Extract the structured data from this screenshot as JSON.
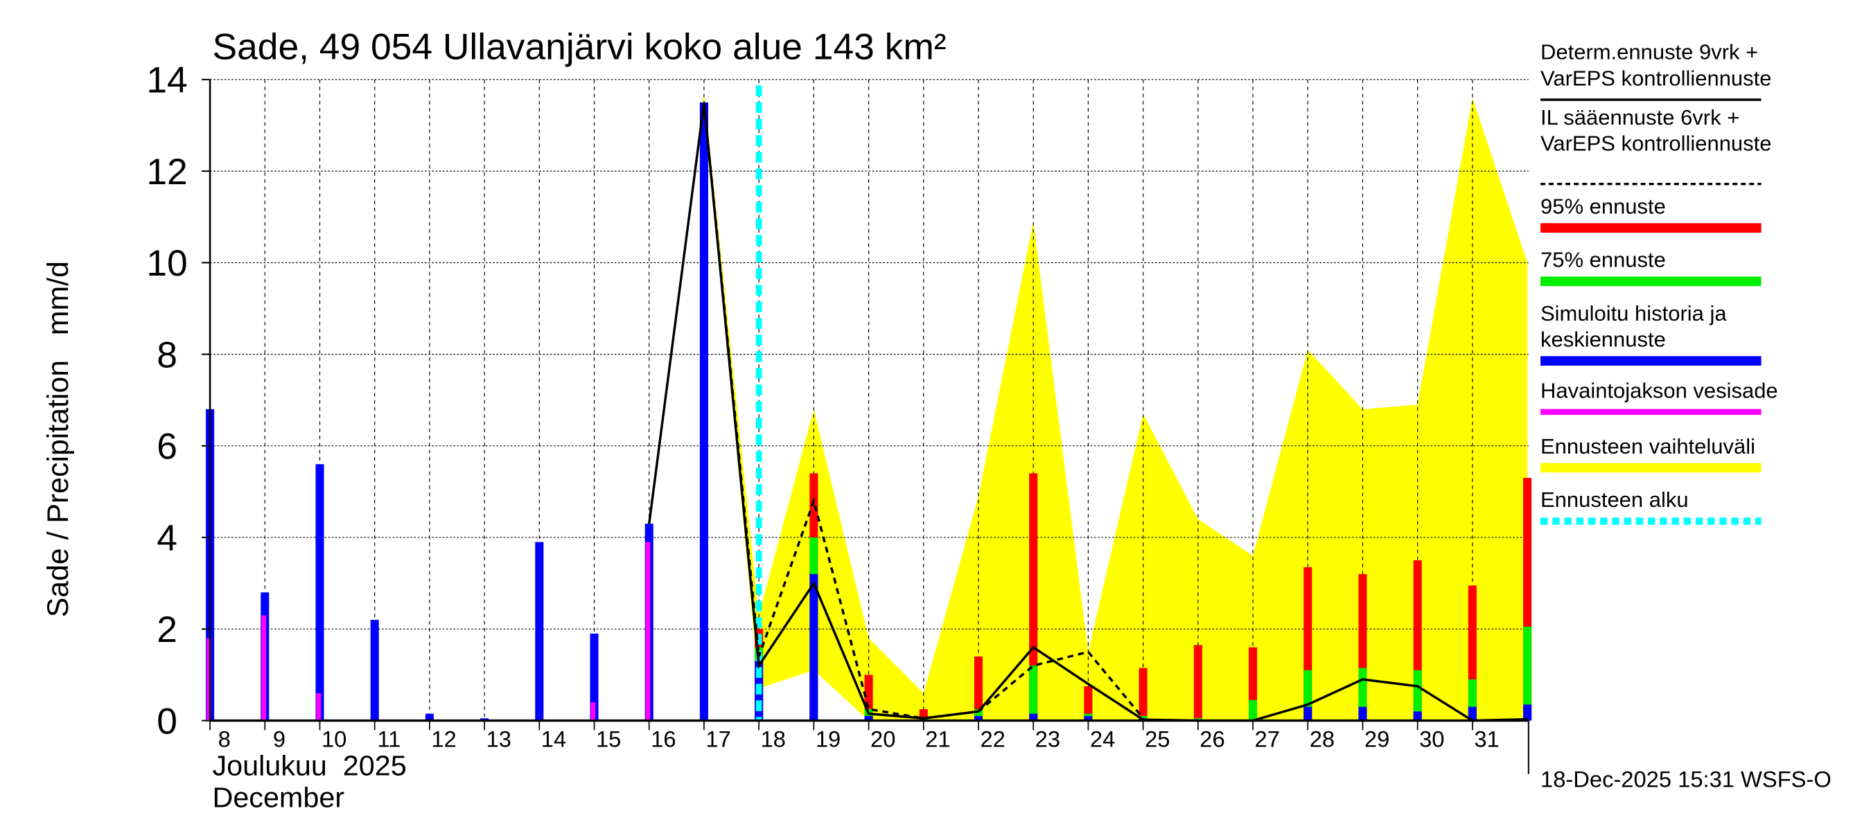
{
  "chart_data": {
    "type": "bar",
    "title": "Sade, 49 054 Ullavanjärvi koko alue 143 km²",
    "ylabel": "Sade / Precipitation   mm/d",
    "xlabel_fi": "Joulukuu  2025",
    "xlabel_en": "December",
    "ylim": [
      0,
      14
    ],
    "yticks": [
      "0",
      "2",
      "4",
      "6",
      "8",
      "10",
      "12",
      "14"
    ],
    "categories": [
      "8",
      "9",
      "10",
      "11",
      "12",
      "13",
      "14",
      "15",
      "16",
      "17",
      "18",
      "19",
      "20",
      "21",
      "22",
      "23",
      "24",
      "25",
      "26",
      "27",
      "28",
      "29",
      "30",
      "31",
      ""
    ],
    "forecast_start_index": 10,
    "series": [
      {
        "name": "Simuloitu historia ja keskiennuste",
        "color": "#0000ff",
        "values": [
          6.8,
          2.8,
          5.6,
          2.2,
          0.15,
          0.05,
          3.9,
          1.9,
          4.3,
          13.5,
          1.3,
          3.2,
          0.1,
          0,
          0.1,
          0.15,
          0.1,
          0.05,
          0.02,
          0.02,
          0.3,
          0.3,
          0.2,
          0.3,
          0.35
        ]
      },
      {
        "name": "Havaintojakson vesisade",
        "color": "#ff00ff",
        "values": [
          1.8,
          2.3,
          0.6,
          0,
          0,
          0,
          0,
          0.4,
          3.9,
          null,
          null,
          null,
          null,
          null,
          null,
          null,
          null,
          null,
          null,
          null,
          null,
          null,
          null,
          null,
          null
        ]
      },
      {
        "name": "75% ennuste",
        "color": "#00ee00",
        "values": [
          null,
          null,
          null,
          null,
          null,
          null,
          null,
          null,
          null,
          null,
          1.6,
          4.0,
          0.25,
          0.05,
          0.25,
          1.2,
          0.15,
          0.1,
          0.05,
          0.45,
          1.1,
          1.15,
          1.1,
          0.9,
          2.05
        ]
      },
      {
        "name": "95% ennuste",
        "color": "#ff0000",
        "values": [
          null,
          null,
          null,
          null,
          null,
          null,
          null,
          null,
          null,
          null,
          2.0,
          5.4,
          1.0,
          0.25,
          1.4,
          5.4,
          0.75,
          1.15,
          1.65,
          1.6,
          3.35,
          3.2,
          3.5,
          2.95,
          5.3
        ]
      }
    ],
    "band": {
      "name": "Ennusteen vaihteluväli",
      "color": "#ffff00",
      "upper": [
        null,
        null,
        null,
        null,
        null,
        null,
        null,
        null,
        4.3,
        13.7,
        2.3,
        6.8,
        1.8,
        0.6,
        4.9,
        10.9,
        1.5,
        6.7,
        4.4,
        3.6,
        8.1,
        6.8,
        6.9,
        13.6,
        10.0
      ],
      "lower": [
        null,
        null,
        null,
        null,
        null,
        null,
        null,
        null,
        4.3,
        13.5,
        0.7,
        1.1,
        0,
        0,
        0,
        0,
        0,
        0,
        0,
        0,
        0,
        0,
        0,
        0,
        0
      ]
    },
    "lines": [
      {
        "name": "Determ.ennuste 9vrk + VarEPS kontrolliennuste",
        "style": "solid",
        "values": [
          null,
          null,
          null,
          null,
          null,
          null,
          null,
          null,
          4.3,
          13.5,
          1.2,
          3.0,
          0.15,
          0.05,
          0.2,
          1.6,
          0.8,
          0.02,
          0,
          0,
          0.35,
          0.9,
          0.75,
          0,
          0.03
        ]
      },
      {
        "name": "IL sääennuste 6vrk + VarEPS kontrolliennuste",
        "style": "dashed",
        "values": [
          null,
          null,
          null,
          null,
          null,
          null,
          null,
          null,
          null,
          13.5,
          1.4,
          4.8,
          0.25,
          0.05,
          0.2,
          1.2,
          1.5,
          0.05,
          null,
          null,
          null,
          null,
          null,
          null,
          null
        ]
      }
    ]
  },
  "legend": [
    {
      "label1": "Determ.ennuste 9vrk +",
      "label2": "VarEPS kontrolliennuste",
      "color": "#000000",
      "style": "solid"
    },
    {
      "label1": "IL sääennuste 6vrk  +",
      "label2": "  VarEPS kontrolliennuste",
      "color": "#000000",
      "style": "dashed"
    },
    {
      "label1": "95% ennuste",
      "label2": "",
      "color": "#ff0000",
      "style": "thick"
    },
    {
      "label1": "75% ennuste",
      "label2": "",
      "color": "#00ee00",
      "style": "thick"
    },
    {
      "label1": "Simuloitu historia ja",
      "label2": "keskiennuste",
      "color": "#0000ff",
      "style": "thick"
    },
    {
      "label1": "Havaintojakson vesisade",
      "label2": "",
      "color": "#ff00ff",
      "style": "mid"
    },
    {
      "label1": "Ennusteen vaihteluväli",
      "label2": "",
      "color": "#ffff00",
      "style": "thick"
    },
    {
      "label1": "Ennusteen alku",
      "label2": "",
      "color": "#00ffff",
      "style": "dotted"
    }
  ],
  "footer": "18-Dec-2025 15:31 WSFS-O"
}
